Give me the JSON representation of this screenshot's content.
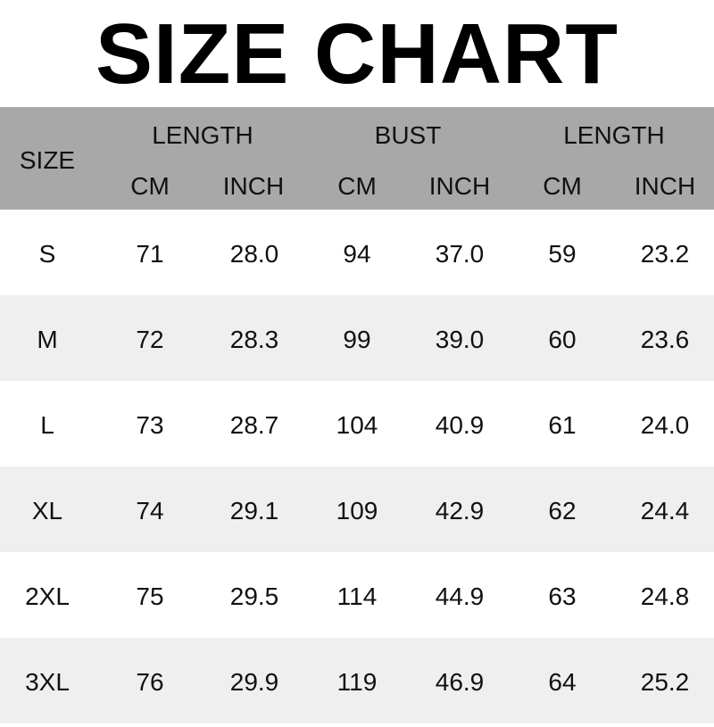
{
  "title": "SIZE CHART",
  "header": {
    "size": "SIZE",
    "groups": [
      "LENGTH",
      "BUST",
      "LENGTH"
    ],
    "units": [
      "CM",
      "INCH",
      "CM",
      "INCH",
      "CM",
      "INCH"
    ]
  },
  "colors": {
    "header_bg": "#a8a8a8",
    "stripe_bg": "#efefef"
  },
  "rows": [
    [
      "S",
      "71",
      "28.0",
      "94",
      "37.0",
      "59",
      "23.2"
    ],
    [
      "M",
      "72",
      "28.3",
      "99",
      "39.0",
      "60",
      "23.6"
    ],
    [
      "L",
      "73",
      "28.7",
      "104",
      "40.9",
      "61",
      "24.0"
    ],
    [
      "XL",
      "74",
      "29.1",
      "109",
      "42.9",
      "62",
      "24.4"
    ],
    [
      "2XL",
      "75",
      "29.5",
      "114",
      "44.9",
      "63",
      "24.8"
    ],
    [
      "3XL",
      "76",
      "29.9",
      "119",
      "46.9",
      "64",
      "25.2"
    ]
  ]
}
